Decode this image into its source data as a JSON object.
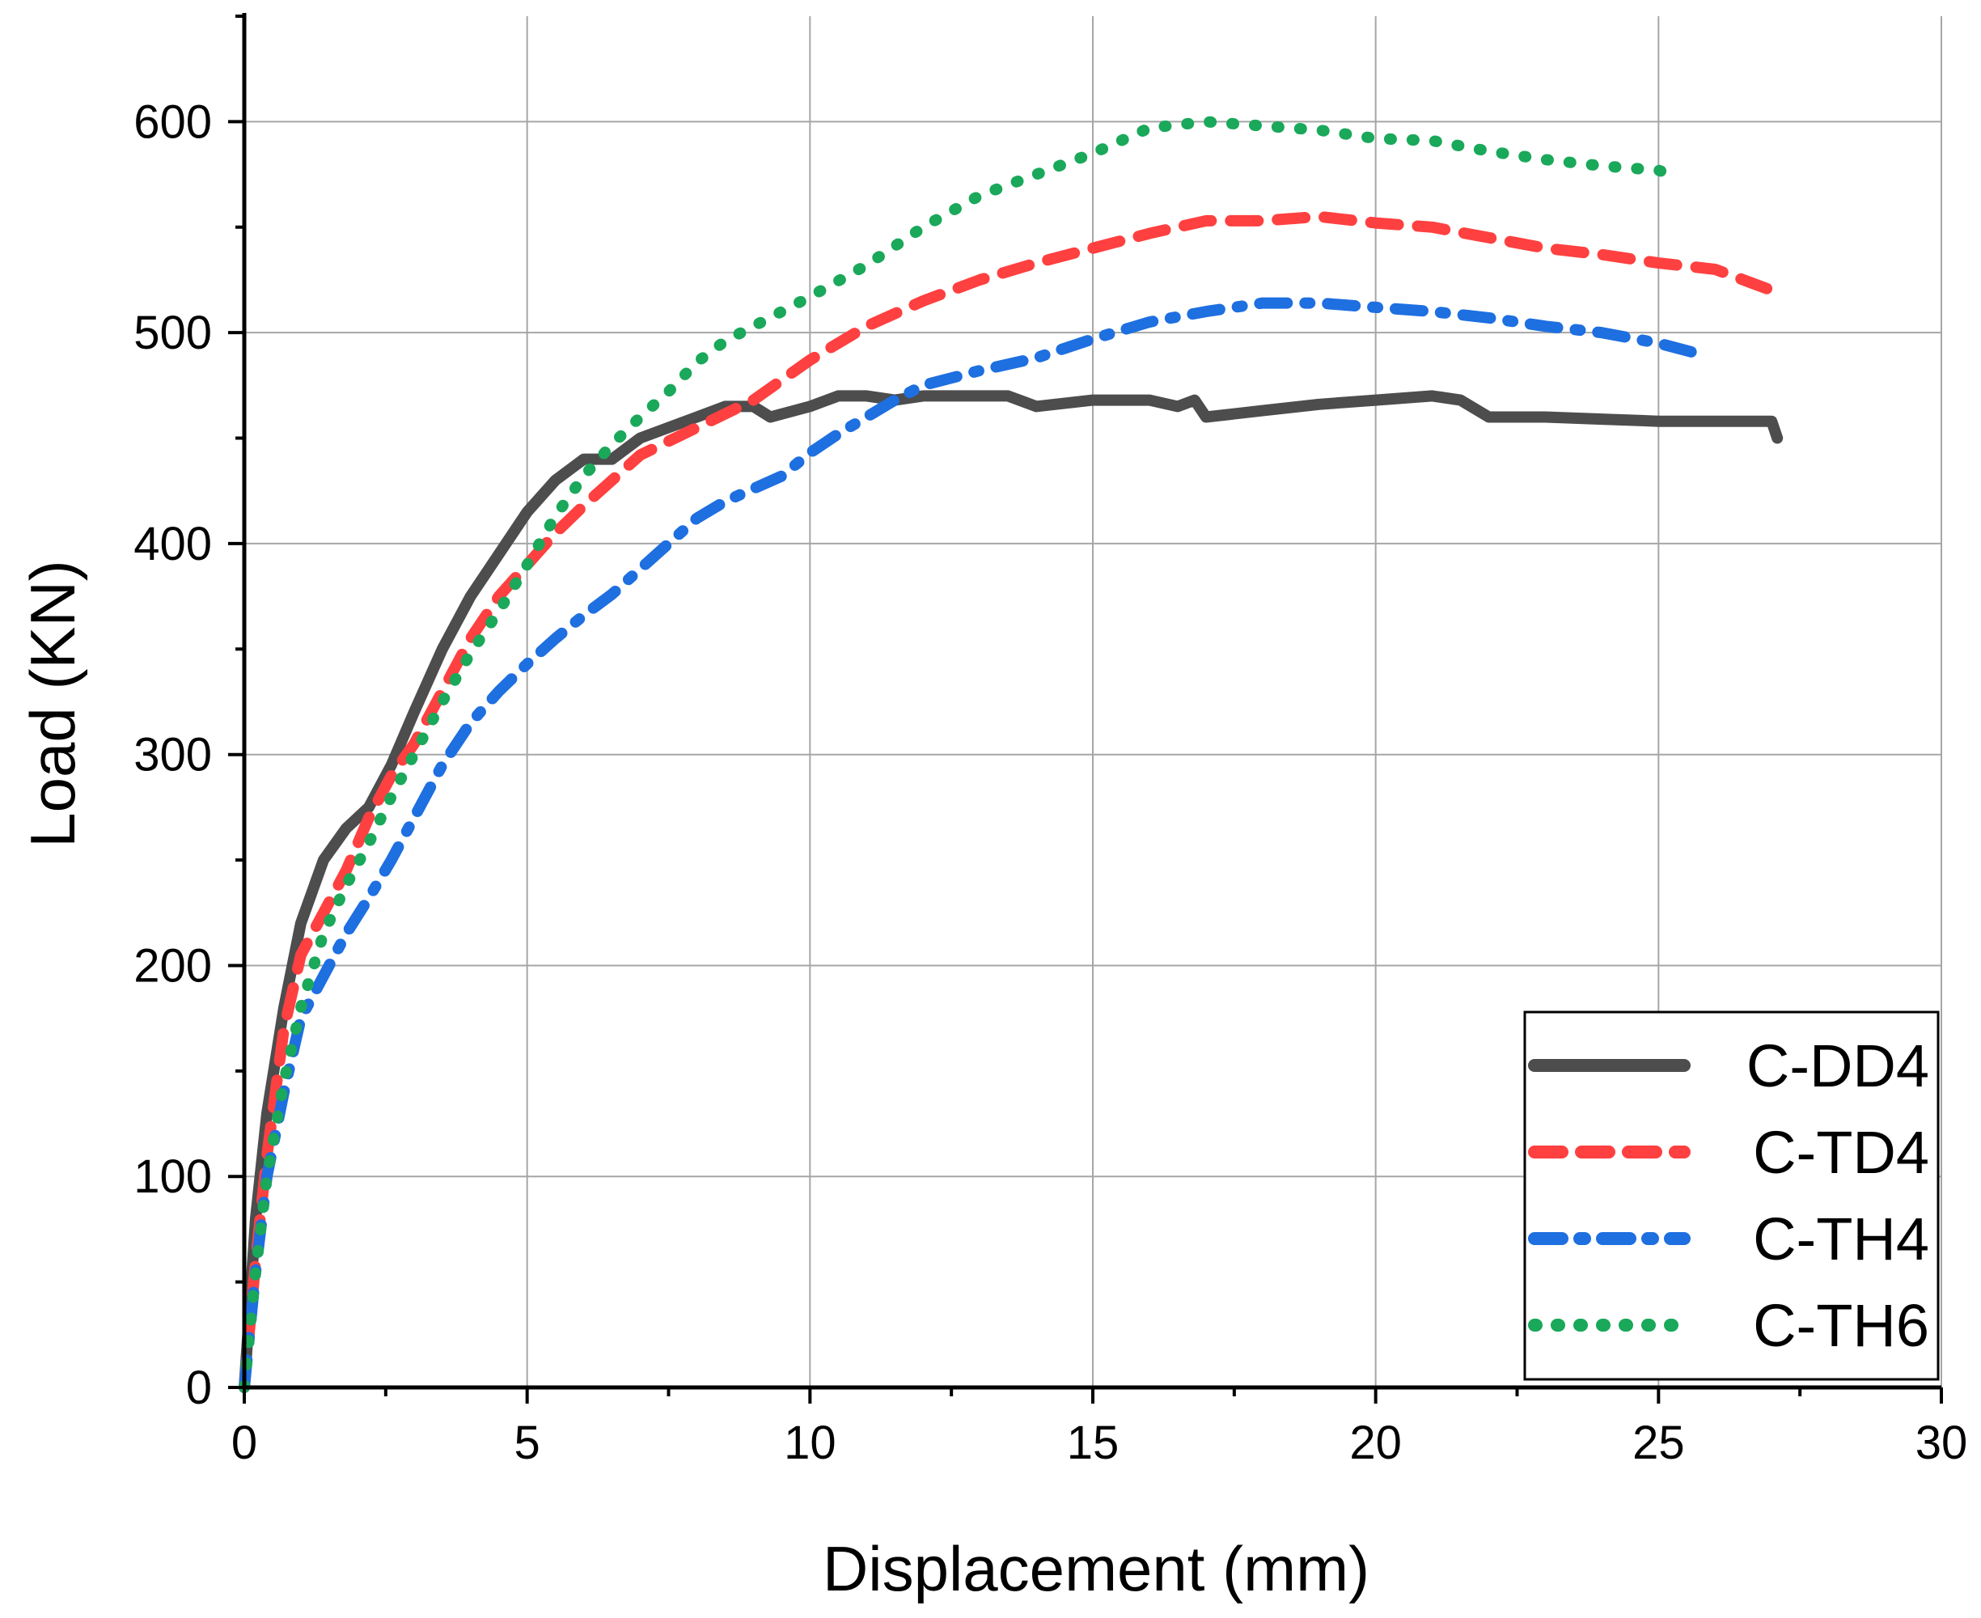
{
  "chart_data": {
    "type": "line",
    "title": "",
    "xlabel": "Displacement (mm)",
    "ylabel": "Load (KN)",
    "xlim": [
      0,
      30
    ],
    "ylim": [
      0,
      650
    ],
    "x_ticks": [
      0,
      5,
      10,
      15,
      20,
      25,
      30
    ],
    "y_ticks": [
      0,
      100,
      200,
      300,
      400,
      500,
      600
    ],
    "grid": true,
    "legend_position": "bottom-right",
    "series": [
      {
        "name": "C-DD4",
        "color": "#4d4d4d",
        "style": "solid",
        "points": [
          [
            0,
            0
          ],
          [
            0.2,
            80
          ],
          [
            0.4,
            130
          ],
          [
            0.7,
            180
          ],
          [
            1,
            220
          ],
          [
            1.4,
            250
          ],
          [
            1.8,
            265
          ],
          [
            2.2,
            275
          ],
          [
            2.6,
            295
          ],
          [
            3,
            320
          ],
          [
            3.5,
            350
          ],
          [
            4,
            375
          ],
          [
            4.5,
            395
          ],
          [
            5,
            415
          ],
          [
            5.5,
            430
          ],
          [
            6,
            440
          ],
          [
            6.5,
            440
          ],
          [
            7,
            450
          ],
          [
            7.5,
            455
          ],
          [
            8,
            460
          ],
          [
            8.5,
            465
          ],
          [
            9,
            465
          ],
          [
            9.3,
            460
          ],
          [
            10,
            465
          ],
          [
            10.5,
            470
          ],
          [
            11,
            470
          ],
          [
            11.5,
            468
          ],
          [
            12,
            470
          ],
          [
            13,
            470
          ],
          [
            13.5,
            470
          ],
          [
            14,
            465
          ],
          [
            15,
            468
          ],
          [
            16,
            468
          ],
          [
            16.5,
            465
          ],
          [
            16.8,
            468
          ],
          [
            17,
            460
          ],
          [
            18,
            463
          ],
          [
            19,
            466
          ],
          [
            20,
            468
          ],
          [
            21,
            470
          ],
          [
            21.5,
            468
          ],
          [
            22,
            460
          ],
          [
            23,
            460
          ],
          [
            24,
            459
          ],
          [
            25,
            458
          ],
          [
            26,
            458
          ],
          [
            27,
            458
          ],
          [
            27.1,
            450
          ]
        ]
      },
      {
        "name": "C-TD4",
        "color": "#ff4040",
        "style": "dash",
        "points": [
          [
            0,
            0
          ],
          [
            0.2,
            60
          ],
          [
            0.4,
            110
          ],
          [
            0.7,
            170
          ],
          [
            1,
            205
          ],
          [
            1.4,
            225
          ],
          [
            1.8,
            245
          ],
          [
            2.2,
            270
          ],
          [
            2.6,
            290
          ],
          [
            3,
            305
          ],
          [
            3.5,
            330
          ],
          [
            4,
            355
          ],
          [
            4.5,
            375
          ],
          [
            5,
            390
          ],
          [
            5.5,
            405
          ],
          [
            6,
            418
          ],
          [
            6.5,
            430
          ],
          [
            7,
            442
          ],
          [
            8,
            455
          ],
          [
            9,
            468
          ],
          [
            10,
            487
          ],
          [
            11,
            503
          ],
          [
            12,
            515
          ],
          [
            13,
            525
          ],
          [
            14,
            533
          ],
          [
            15,
            540
          ],
          [
            16,
            547
          ],
          [
            17,
            553
          ],
          [
            18,
            553
          ],
          [
            19,
            555
          ],
          [
            20,
            552
          ],
          [
            21,
            550
          ],
          [
            22,
            545
          ],
          [
            23,
            540
          ],
          [
            24,
            537
          ],
          [
            25,
            533
          ],
          [
            26,
            530
          ],
          [
            27,
            520
          ]
        ]
      },
      {
        "name": "C-TH4",
        "color": "#1e6fe0",
        "style": "dashdot",
        "points": [
          [
            0,
            0
          ],
          [
            0.2,
            55
          ],
          [
            0.4,
            100
          ],
          [
            0.7,
            140
          ],
          [
            1,
            175
          ],
          [
            1.4,
            195
          ],
          [
            1.8,
            215
          ],
          [
            2.2,
            232
          ],
          [
            2.6,
            250
          ],
          [
            3,
            270
          ],
          [
            3.5,
            295
          ],
          [
            4,
            315
          ],
          [
            4.5,
            330
          ],
          [
            5,
            343
          ],
          [
            5.5,
            355
          ],
          [
            6,
            366
          ],
          [
            6.5,
            376
          ],
          [
            7,
            388
          ],
          [
            7.5,
            400
          ],
          [
            8,
            412
          ],
          [
            8.5,
            420
          ],
          [
            9,
            426
          ],
          [
            9.5,
            432
          ],
          [
            10,
            443
          ],
          [
            10.5,
            452
          ],
          [
            11,
            460
          ],
          [
            11.5,
            468
          ],
          [
            12,
            475
          ],
          [
            13,
            482
          ],
          [
            14,
            488
          ],
          [
            15,
            497
          ],
          [
            16,
            505
          ],
          [
            17,
            510
          ],
          [
            18,
            514
          ],
          [
            19,
            514
          ],
          [
            20,
            512
          ],
          [
            21,
            510
          ],
          [
            22,
            507
          ],
          [
            23,
            503
          ],
          [
            24,
            500
          ],
          [
            25,
            495
          ],
          [
            25.7,
            490
          ]
        ]
      },
      {
        "name": "C-TH6",
        "color": "#1aa85a",
        "style": "dot",
        "points": [
          [
            0,
            0
          ],
          [
            0.2,
            55
          ],
          [
            0.4,
            100
          ],
          [
            0.7,
            145
          ],
          [
            1,
            180
          ],
          [
            1.4,
            215
          ],
          [
            1.8,
            238
          ],
          [
            2.2,
            258
          ],
          [
            2.6,
            280
          ],
          [
            3,
            300
          ],
          [
            3.5,
            325
          ],
          [
            4,
            348
          ],
          [
            4.5,
            368
          ],
          [
            5,
            390
          ],
          [
            5.5,
            413
          ],
          [
            6,
            432
          ],
          [
            6.5,
            447
          ],
          [
            7,
            460
          ],
          [
            7.5,
            472
          ],
          [
            8,
            486
          ],
          [
            8.5,
            496
          ],
          [
            9,
            503
          ],
          [
            9.5,
            510
          ],
          [
            10,
            517
          ],
          [
            11,
            532
          ],
          [
            12,
            550
          ],
          [
            13,
            565
          ],
          [
            14,
            575
          ],
          [
            15,
            585
          ],
          [
            16,
            597
          ],
          [
            17,
            600
          ],
          [
            18,
            598
          ],
          [
            19,
            596
          ],
          [
            20,
            592
          ],
          [
            21,
            591
          ],
          [
            22,
            586
          ],
          [
            23,
            582
          ],
          [
            24,
            579
          ],
          [
            25,
            577
          ],
          [
            25.2,
            575
          ]
        ]
      }
    ]
  }
}
